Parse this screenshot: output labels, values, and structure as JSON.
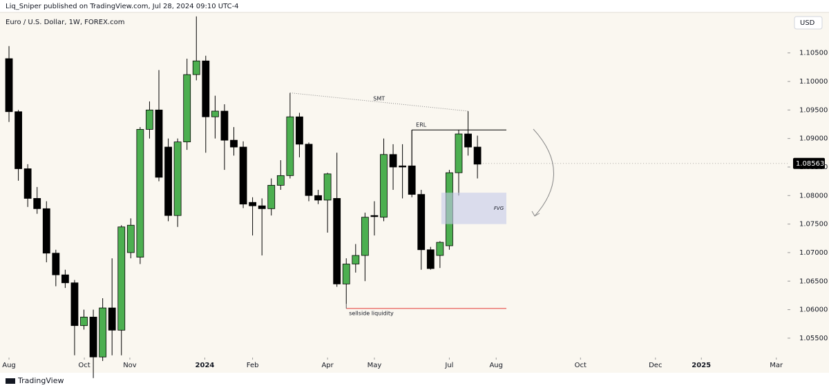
{
  "header": {
    "publisher": "Liq_Sniper published on TradingView.com, Jul 28, 2024 09:10 UTC-4",
    "brand": "TradingView"
  },
  "chart_data": {
    "type": "candlestick",
    "title": "Euro / U.S. Dollar, 1W, FOREX.com",
    "currency": "USD",
    "categories": [
      null,
      null,
      null,
      null,
      null,
      null,
      null,
      null,
      null,
      null,
      null,
      null,
      null,
      null,
      null,
      null,
      null,
      null,
      null,
      null,
      null,
      null,
      null,
      null,
      null,
      null,
      null,
      null,
      null,
      null,
      null,
      null,
      null,
      null,
      null,
      null,
      null,
      null,
      null,
      null,
      null,
      null,
      null,
      null,
      null,
      null,
      null,
      null,
      null,
      null,
      null
    ],
    "open": [
      1.104,
      1.0947,
      1.0847,
      1.0795,
      1.0777,
      1.0699,
      1.0661,
      1.0647,
      1.0572,
      1.0587,
      1.0517,
      1.0603,
      1.0564,
      1.07,
      1.0692,
      1.0916,
      1.095,
      1.0885,
      1.0765,
      1.0894,
      1.1012,
      1.1036,
      1.0938,
      1.0948,
      1.0897,
      1.0885,
      1.0788,
      1.0782,
      1.0777,
      1.0818,
      1.0835,
      1.0938,
      1.089,
      1.08,
      1.0792,
      1.0795,
      1.0645,
      1.068,
      1.0695,
      1.0765,
      1.0762,
      1.0872,
      1.0852,
      1.0852,
      1.0802,
      1.0705,
      1.0695,
      1.0712,
      1.084,
      1.0908,
      1.0885
    ],
    "high": [
      1.1062,
      1.095,
      1.0855,
      1.0815,
      1.079,
      1.0705,
      1.067,
      1.0652,
      1.06,
      1.06,
      1.062,
      1.069,
      1.0748,
      1.076,
      1.092,
      1.0965,
      1.102,
      1.09,
      1.09,
      1.104,
      1.1114,
      1.1045,
      1.0975,
      1.096,
      1.092,
      1.0895,
      1.0797,
      1.0795,
      1.083,
      1.0862,
      1.098,
      1.0945,
      1.0893,
      1.081,
      1.084,
      1.0875,
      1.069,
      1.0715,
      1.077,
      1.079,
      1.09,
      1.089,
      1.089,
      1.0915,
      1.081,
      1.071,
      1.072,
      1.0845,
      1.0915,
      1.0948,
      1.0905
    ],
    "low": [
      1.0929,
      1.0826,
      1.078,
      1.0768,
      1.0683,
      1.0641,
      1.0638,
      1.052,
      1.0565,
      1.048,
      1.051,
      1.052,
      1.052,
      1.069,
      1.068,
      1.09,
      1.0825,
      1.0755,
      1.0745,
      1.088,
      1.1002,
      1.0875,
      1.09,
      1.0845,
      1.087,
      1.0778,
      1.073,
      1.0695,
      1.0765,
      1.081,
      1.083,
      1.0867,
      1.079,
      1.0785,
      1.0735,
      1.064,
      1.061,
      1.0665,
      1.065,
      1.073,
      1.0755,
      1.081,
      1.0795,
      1.0797,
      1.067,
      1.067,
      1.0673,
      1.0705,
      1.08,
      1.087,
      1.083
    ],
    "close": [
      1.0947,
      1.0847,
      1.0795,
      1.0777,
      1.0699,
      1.0661,
      1.0647,
      1.0572,
      1.0587,
      1.0517,
      1.0603,
      1.0564,
      1.0745,
      1.0748,
      1.0916,
      1.095,
      1.0832,
      1.0765,
      1.0894,
      1.1012,
      1.1036,
      1.0938,
      1.0948,
      1.0897,
      1.0885,
      1.0785,
      1.0782,
      1.0777,
      1.0818,
      1.0835,
      1.0938,
      1.089,
      1.08,
      1.0792,
      1.0838,
      1.0645,
      1.068,
      1.0695,
      1.0762,
      1.0763,
      1.0872,
      1.085,
      1.085,
      1.0802,
      1.0705,
      1.0672,
      1.0718,
      1.084,
      1.0908,
      1.0885,
      1.0855
    ],
    "up_color": "#4caf50",
    "down_color": "#000000",
    "last_price": 1.08563,
    "xlim": [
      -0.96,
      83.1
    ],
    "xticks": [
      {
        "value": 0,
        "label": "Aug"
      },
      {
        "value": 8.04,
        "label": "Oct"
      },
      {
        "value": 12.9,
        "label": "Nov"
      },
      {
        "value": 20.9,
        "label": "2024"
      },
      {
        "value": 26,
        "label": "Feb"
      },
      {
        "value": 34,
        "label": "Apr"
      },
      {
        "value": 39,
        "label": "May"
      },
      {
        "value": 47,
        "label": "Jul"
      },
      {
        "value": 52,
        "label": "Aug"
      },
      {
        "value": 61,
        "label": "Oct"
      },
      {
        "value": 69,
        "label": "Dec"
      },
      {
        "value": 73.9,
        "label": "2025"
      },
      {
        "value": 81.9,
        "label": "Mar"
      }
    ],
    "ylim": [
      1.0516,
      1.1121
    ],
    "yticks": [
      {
        "value": 1.055,
        "label": "1.05500"
      },
      {
        "value": 1.06,
        "label": "1.06000"
      },
      {
        "value": 1.065,
        "label": "1.06500"
      },
      {
        "value": 1.07,
        "label": "1.07000"
      },
      {
        "value": 1.075,
        "label": "1.07500"
      },
      {
        "value": 1.08,
        "label": "1.08000"
      },
      {
        "value": 1.085,
        "label": "1.08500"
      },
      {
        "value": 1.09,
        "label": "1.09000"
      },
      {
        "value": 1.095,
        "label": "1.09500"
      },
      {
        "value": 1.1,
        "label": "1.10000"
      },
      {
        "value": 1.105,
        "label": "1.10500"
      }
    ],
    "annotations": {
      "smt": {
        "text": "SMT"
      },
      "erl": {
        "text": "ERL",
        "level": 1.0915
      },
      "fvg": {
        "text": "FVG",
        "top": 1.0805,
        "bottom": 1.075
      },
      "ssl": {
        "text": "sellside liquidity",
        "level": 1.0602
      }
    }
  }
}
